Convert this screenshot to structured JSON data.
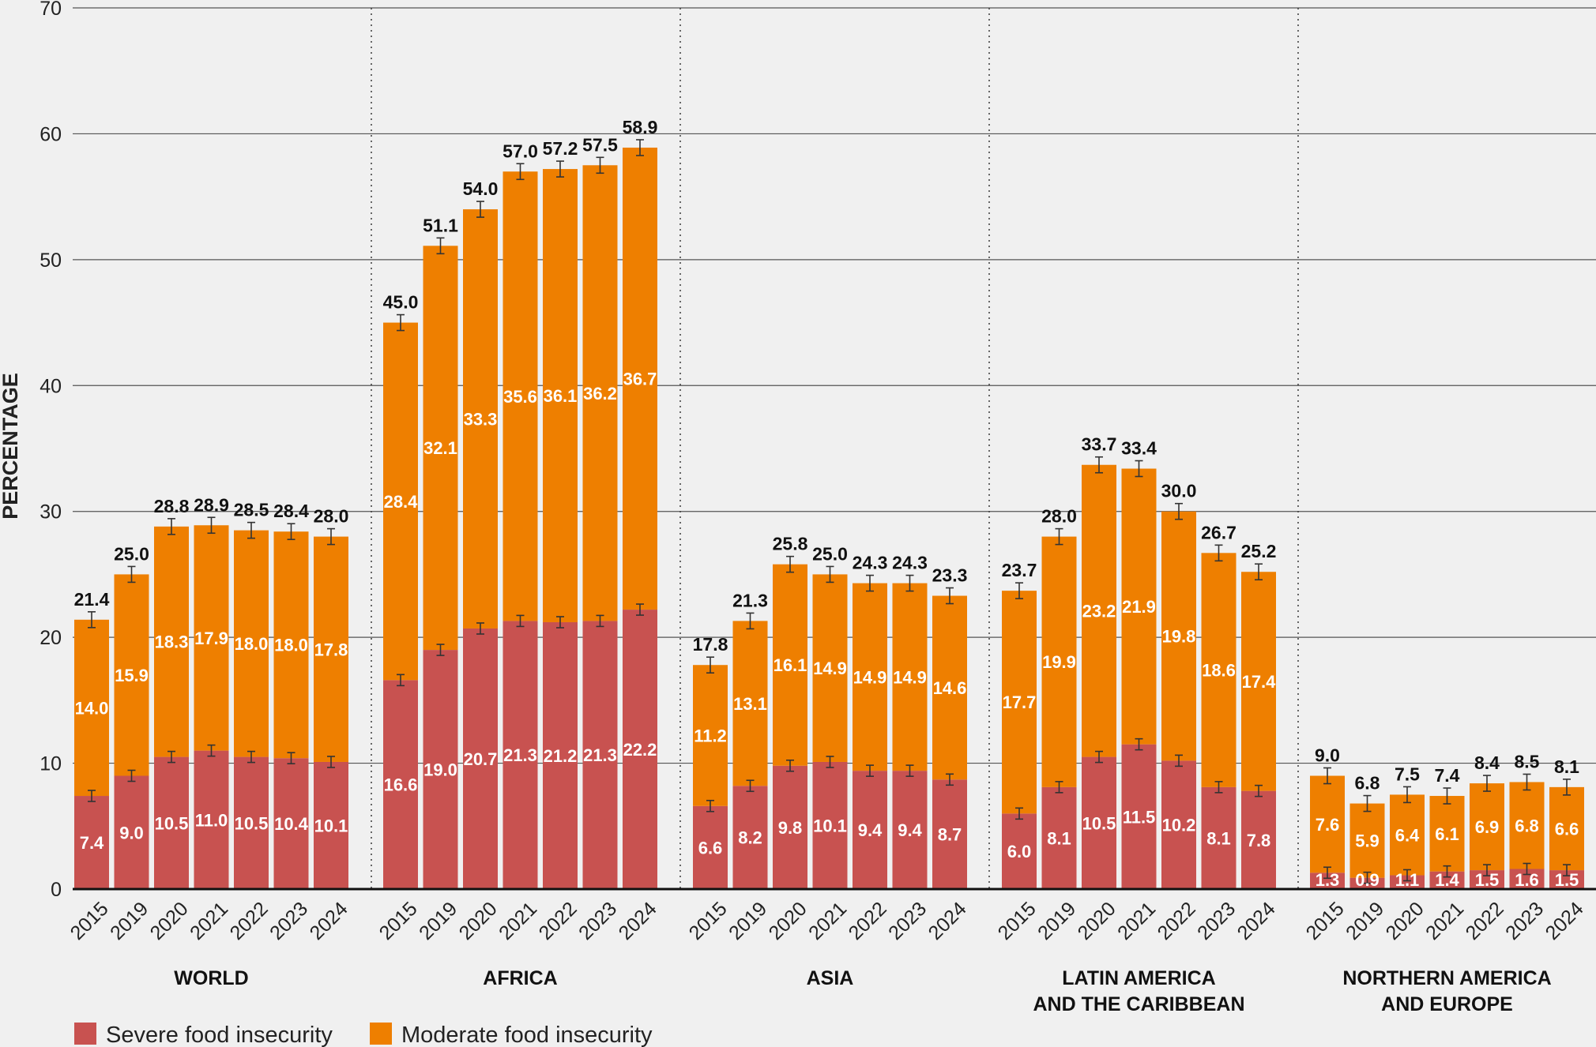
{
  "colors": {
    "severe": "#c85250",
    "moderate": "#ee7f00",
    "grid": "#555555",
    "divider": "#444444"
  },
  "chart_data": {
    "type": "bar",
    "stacked": true,
    "ylabel": "PERCENTAGE",
    "ylim": [
      0,
      70
    ],
    "yticks": [
      "0",
      "10",
      "20",
      "30",
      "40",
      "50",
      "60",
      "70"
    ],
    "legend": [
      {
        "key": "severe",
        "label": "Severe food insecurity"
      },
      {
        "key": "moderate",
        "label": "Moderate food insecurity"
      }
    ],
    "groups": [
      {
        "name": [
          "WORLD"
        ],
        "years": [
          "2015",
          "2019",
          "2020",
          "2021",
          "2022",
          "2023",
          "2024"
        ],
        "severe": [
          7.4,
          9.0,
          10.5,
          11.0,
          10.5,
          10.4,
          10.1
        ],
        "moderate": [
          14.0,
          15.9,
          18.3,
          17.9,
          18.0,
          18.0,
          17.8
        ],
        "severe_labels": [
          "7.4",
          "9.0",
          "10.5",
          "11.0",
          "10.5",
          "10.4",
          "10.1"
        ],
        "moderate_labels": [
          "14.0",
          "15.9",
          "18.3",
          "17.9",
          "18.0",
          "18.0",
          "17.8"
        ],
        "total_labels": [
          "21.4",
          "25.0",
          "28.8",
          "28.9",
          "28.5",
          "28.4",
          "28.0"
        ]
      },
      {
        "name": [
          "AFRICA"
        ],
        "years": [
          "2015",
          "2019",
          "2020",
          "2021",
          "2022",
          "2023",
          "2024"
        ],
        "severe": [
          16.6,
          19.0,
          20.7,
          21.3,
          21.2,
          21.3,
          22.2
        ],
        "moderate": [
          28.4,
          32.1,
          33.3,
          35.6,
          36.1,
          36.2,
          36.7
        ],
        "severe_labels": [
          "16.6",
          "19.0",
          "20.7",
          "21.3",
          "21.2",
          "21.3",
          "22.2"
        ],
        "moderate_labels": [
          "28.4",
          "32.1",
          "33.3",
          "35.6",
          "36.1",
          "36.2",
          "36.7"
        ],
        "total_labels": [
          "45.0",
          "51.1",
          "54.0",
          "57.0",
          "57.2",
          "57.5",
          "58.9"
        ]
      },
      {
        "name": [
          "ASIA"
        ],
        "years": [
          "2015",
          "2019",
          "2020",
          "2021",
          "2022",
          "2023",
          "2024"
        ],
        "severe": [
          6.6,
          8.2,
          9.8,
          10.1,
          9.4,
          9.4,
          8.7
        ],
        "moderate": [
          11.2,
          13.1,
          16.1,
          14.9,
          14.9,
          14.9,
          14.6
        ],
        "severe_labels": [
          "6.6",
          "8.2",
          "9.8",
          "10.1",
          "9.4",
          "9.4",
          "8.7"
        ],
        "moderate_labels": [
          "11.2",
          "13.1",
          "16.1",
          "14.9",
          "14.9",
          "14.9",
          "14.6"
        ],
        "total_labels": [
          "17.8",
          "21.3",
          "25.8",
          "25.0",
          "24.3",
          "24.3",
          "23.3"
        ]
      },
      {
        "name": [
          "LATIN AMERICA",
          "AND THE CARIBBEAN"
        ],
        "years": [
          "2015",
          "2019",
          "2020",
          "2021",
          "2022",
          "2023",
          "2024"
        ],
        "severe": [
          6.0,
          8.1,
          10.5,
          11.5,
          10.2,
          8.1,
          7.8
        ],
        "moderate": [
          17.7,
          19.9,
          23.2,
          21.9,
          19.8,
          18.6,
          17.4
        ],
        "severe_labels": [
          "6.0",
          "8.1",
          "10.5",
          "11.5",
          "10.2",
          "8.1",
          "7.8"
        ],
        "moderate_labels": [
          "17.7",
          "19.9",
          "23.2",
          "21.9",
          "19.8",
          "18.6",
          "17.4"
        ],
        "total_labels": [
          "23.7",
          "28.0",
          "33.7",
          "33.4",
          "30.0",
          "26.7",
          "25.2"
        ]
      },
      {
        "name": [
          "NORTHERN AMERICA",
          "AND EUROPE"
        ],
        "years": [
          "2015",
          "2019",
          "2020",
          "2021",
          "2022",
          "2023",
          "2024"
        ],
        "severe": [
          1.3,
          0.9,
          1.1,
          1.4,
          1.5,
          1.6,
          1.5
        ],
        "moderate": [
          7.6,
          5.9,
          6.4,
          6.1,
          6.9,
          6.8,
          6.6
        ],
        "severe_labels": [
          "1.3",
          "0.9",
          "1.1",
          "1.4",
          "1.5",
          "1.6",
          "1.5"
        ],
        "moderate_labels": [
          "7.6",
          "5.9",
          "6.4",
          "6.1",
          "6.9",
          "6.8",
          "6.6"
        ],
        "total_labels": [
          "9.0",
          "6.8",
          "7.5",
          "7.4",
          "8.4",
          "8.5",
          "8.1"
        ]
      }
    ]
  }
}
